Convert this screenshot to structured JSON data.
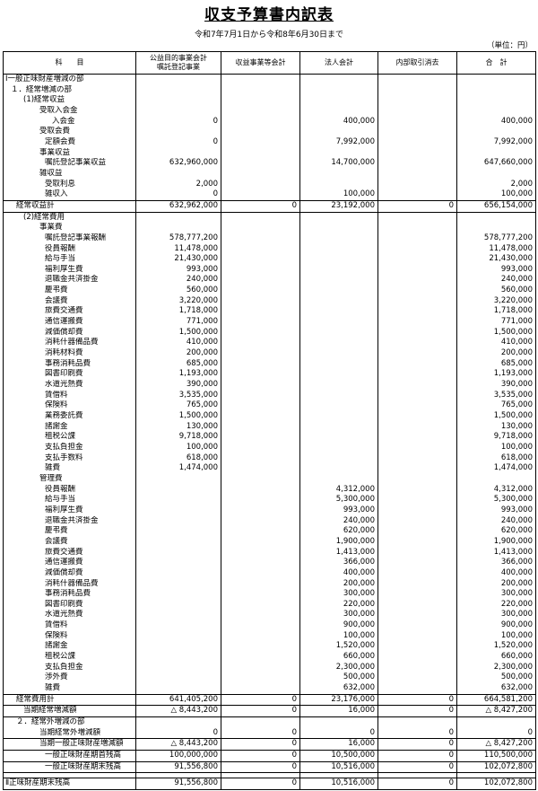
{
  "header": {
    "title": "収支予算書内訳表",
    "period": "令和7年7月1日から令和8年6月30日まで",
    "unit": "（単位：円）"
  },
  "table": {
    "columns": [
      "科　　目",
      [
        "公益目的事業会計",
        "嘱託登記事業"
      ],
      "収益事業等会計",
      "法人会計",
      "内部取引消去",
      "合　計"
    ],
    "rows": [
      [
        "Ⅰ一般正味財産増減の部",
        null,
        null,
        null,
        null,
        null
      ],
      [
        "１．経常増減の部",
        null,
        null,
        null,
        null,
        null
      ],
      [
        "(1)経常収益",
        null,
        null,
        null,
        null,
        null
      ],
      [
        "受取入会金",
        null,
        null,
        null,
        null,
        null
      ],
      [
        "入会金",
        "0",
        null,
        "400,000",
        null,
        "400,000"
      ],
      [
        "受取会費",
        null,
        null,
        null,
        null,
        null
      ],
      [
        "定額会費",
        "0",
        null,
        "7,992,000",
        null,
        "7,992,000"
      ],
      [
        "事業収益",
        null,
        null,
        null,
        null,
        null
      ],
      [
        "嘱託登記事業収益",
        "632,960,000",
        null,
        "14,700,000",
        null,
        "647,660,000"
      ],
      [
        "雑収益",
        null,
        null,
        null,
        null,
        null
      ],
      [
        "受取利息",
        "2,000",
        null,
        null,
        null,
        "2,000"
      ],
      [
        "雑収入",
        "0",
        null,
        "100,000",
        null,
        "100,000"
      ],
      [
        "経常収益計",
        "632,962,000",
        "0",
        "23,192,000",
        "0",
        "656,154,000"
      ],
      [
        "(2)経常費用",
        null,
        null,
        null,
        null,
        null
      ],
      [
        "事業費",
        null,
        null,
        null,
        null,
        null
      ],
      [
        "嘱託登記事業報酬",
        "578,777,200",
        null,
        null,
        null,
        "578,777,200"
      ],
      [
        "役員報酬",
        "11,478,000",
        null,
        null,
        null,
        "11,478,000"
      ],
      [
        "給与手当",
        "21,430,000",
        null,
        null,
        null,
        "21,430,000"
      ],
      [
        "福利厚生費",
        "993,000",
        null,
        null,
        null,
        "993,000"
      ],
      [
        "退職金共済掛金",
        "240,000",
        null,
        null,
        null,
        "240,000"
      ],
      [
        "慶弔費",
        "560,000",
        null,
        null,
        null,
        "560,000"
      ],
      [
        "会議費",
        "3,220,000",
        null,
        null,
        null,
        "3,220,000"
      ],
      [
        "旅費交通費",
        "1,718,000",
        null,
        null,
        null,
        "1,718,000"
      ],
      [
        "通信運搬費",
        "771,000",
        null,
        null,
        null,
        "771,000"
      ],
      [
        "減価償却費",
        "1,500,000",
        null,
        null,
        null,
        "1,500,000"
      ],
      [
        "消耗什器備品費",
        "410,000",
        null,
        null,
        null,
        "410,000"
      ],
      [
        "消耗材料費",
        "200,000",
        null,
        null,
        null,
        "200,000"
      ],
      [
        "事務消耗品費",
        "685,000",
        null,
        null,
        null,
        "685,000"
      ],
      [
        "図書印刷費",
        "1,193,000",
        null,
        null,
        null,
        "1,193,000"
      ],
      [
        "水道光熱費",
        "390,000",
        null,
        null,
        null,
        "390,000"
      ],
      [
        "賃借料",
        "3,535,000",
        null,
        null,
        null,
        "3,535,000"
      ],
      [
        "保険料",
        "765,000",
        null,
        null,
        null,
        "765,000"
      ],
      [
        "業務委託費",
        "1,500,000",
        null,
        null,
        null,
        "1,500,000"
      ],
      [
        "諸謝金",
        "130,000",
        null,
        null,
        null,
        "130,000"
      ],
      [
        "租税公課",
        "9,718,000",
        null,
        null,
        null,
        "9,718,000"
      ],
      [
        "支払負担金",
        "100,000",
        null,
        null,
        null,
        "100,000"
      ],
      [
        "支払手数料",
        "618,000",
        null,
        null,
        null,
        "618,000"
      ],
      [
        "雑費",
        "1,474,000",
        null,
        null,
        null,
        "1,474,000"
      ],
      [
        "管理費",
        null,
        null,
        null,
        null,
        null
      ],
      [
        "役員報酬",
        null,
        null,
        "4,312,000",
        null,
        "4,312,000"
      ],
      [
        "給与手当",
        null,
        null,
        "5,300,000",
        null,
        "5,300,000"
      ],
      [
        "福利厚生費",
        null,
        null,
        "993,000",
        null,
        "993,000"
      ],
      [
        "退職金共済掛金",
        null,
        null,
        "240,000",
        null,
        "240,000"
      ],
      [
        "慶弔費",
        null,
        null,
        "620,000",
        null,
        "620,000"
      ],
      [
        "会議費",
        null,
        null,
        "1,900,000",
        null,
        "1,900,000"
      ],
      [
        "旅費交通費",
        null,
        null,
        "1,413,000",
        null,
        "1,413,000"
      ],
      [
        "通信運搬費",
        null,
        null,
        "366,000",
        null,
        "366,000"
      ],
      [
        "減価償却費",
        null,
        null,
        "400,000",
        null,
        "400,000"
      ],
      [
        "消耗什器備品費",
        null,
        null,
        "200,000",
        null,
        "200,000"
      ],
      [
        "事務消耗品費",
        null,
        null,
        "300,000",
        null,
        "300,000"
      ],
      [
        "図書印刷費",
        null,
        null,
        "220,000",
        null,
        "220,000"
      ],
      [
        "水道光熱費",
        null,
        null,
        "300,000",
        null,
        "300,000"
      ],
      [
        "賃借料",
        null,
        null,
        "900,000",
        null,
        "900,000"
      ],
      [
        "保険料",
        null,
        null,
        "100,000",
        null,
        "100,000"
      ],
      [
        "諸謝金",
        null,
        null,
        "1,520,000",
        null,
        "1,520,000"
      ],
      [
        "租税公課",
        null,
        null,
        "660,000",
        null,
        "660,000"
      ],
      [
        "支払負担金",
        null,
        null,
        "2,300,000",
        null,
        "2,300,000"
      ],
      [
        "渉外費",
        null,
        null,
        "500,000",
        null,
        "500,000"
      ],
      [
        "雑費",
        null,
        null,
        "632,000",
        null,
        "632,000"
      ],
      [
        "経常費用計",
        "641,405,200",
        "0",
        "23,176,000",
        "0",
        "664,581,200"
      ],
      [
        "当期経常増減額",
        "△ 8,443,200",
        "0",
        "16,000",
        "0",
        "△ 8,427,200"
      ],
      [
        "２．経常外増減の部",
        null,
        null,
        null,
        null,
        null
      ],
      [
        "当期経常外増減額",
        "0",
        "0",
        "0",
        "0",
        "0"
      ],
      [
        "当期一般正味財産増減額",
        "△ 8,443,200",
        "0",
        "16,000",
        "0",
        "△ 8,427,200"
      ],
      [
        "一般正味財産期首残高",
        "100,000,000",
        "0",
        "10,500,000",
        "0",
        "110,500,000"
      ],
      [
        "一般正味財産期末残高",
        "91,556,800",
        "0",
        "10,516,000",
        "0",
        "102,072,800"
      ],
      [
        "Ⅱ正味財産期末残高",
        "91,556,800",
        "0",
        "10,516,000",
        "0",
        "102,072,800"
      ]
    ]
  }
}
